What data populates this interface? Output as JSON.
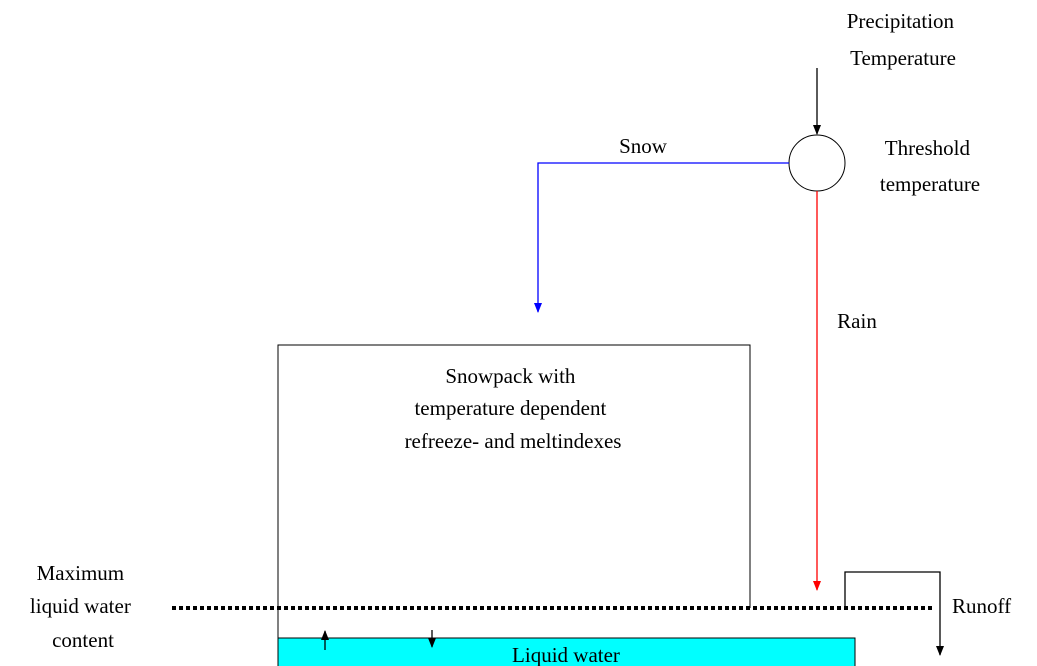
{
  "inputs": {
    "lines": [
      "Precipitation",
      "Temperature"
    ]
  },
  "threshold": {
    "lines": [
      "Threshold",
      "temperature"
    ]
  },
  "snow": "Snow",
  "rain": "Rain",
  "snowpack": {
    "lines": [
      "Snowpack with",
      "temperature dependent",
      "refreeze- and meltindexes"
    ]
  },
  "max_liquid": {
    "lines": [
      "Maximum",
      "liquid water",
      "content"
    ]
  },
  "runoff": "Runoff",
  "liquid_water": "Liquid water"
}
